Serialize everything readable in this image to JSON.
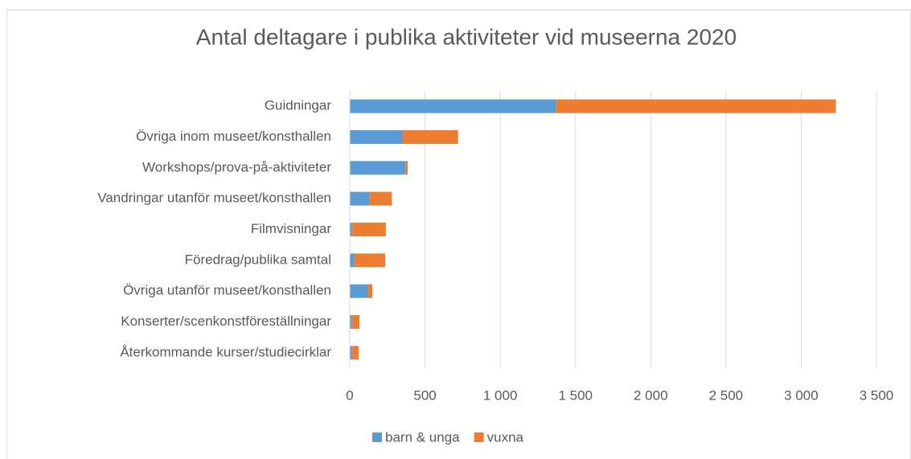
{
  "chart_data": {
    "type": "stacked_barh",
    "title": "Antal deltagare i publika aktiviteter vid museerna 2020",
    "categories": [
      "Guidningar",
      "Övriga inom museet/konsthallen",
      "Workshops/prova-på-aktiviteter",
      "Vandringar utanför museet/konsthallen",
      "Filmvisningar",
      "Föredrag/publika samtal",
      "Övriga utanför museet/konsthallen",
      "Konserter/scenkonstföreställningar",
      "Återkommande kurser/studiecirklar"
    ],
    "series": [
      {
        "name": "barn & unga",
        "color": "#5b9bd5",
        "values": [
          1370,
          350,
          370,
          130,
          15,
          30,
          120,
          15,
          15
        ]
      },
      {
        "name": "vuxna",
        "color": "#ed7d31",
        "values": [
          1860,
          370,
          15,
          150,
          225,
          205,
          30,
          50,
          45
        ]
      }
    ],
    "xlim": [
      0,
      3500
    ],
    "xticks": [
      0,
      500,
      {
        "value": 1000,
        "label": "1 000"
      },
      {
        "value": 1500,
        "label": "1 500"
      },
      {
        "value": 2000,
        "label": "2 000"
      },
      {
        "value": 2500,
        "label": "2 500"
      },
      {
        "value": 3000,
        "label": "3 000"
      },
      {
        "value": 3500,
        "label": "3 500"
      }
    ],
    "grid": true,
    "legend": "bottom"
  }
}
